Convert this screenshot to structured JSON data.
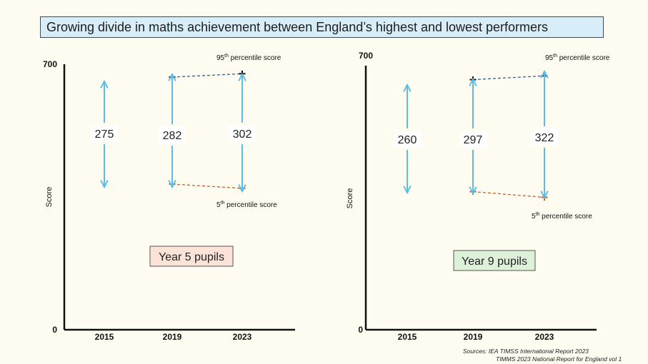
{
  "title": "Growing divide in maths achievement between England’s highest and lowest performers",
  "sources": [
    "Sources:   IEA TIMSS International Report 2023",
    "TIMMS 2023 National Report for England vol 1"
  ],
  "colors": {
    "background": "#fefcf0",
    "title_box": "#d7eef9",
    "arrow": "#5bbde6",
    "p95": "#2f5f8f",
    "p5": "#c0602a",
    "year5_box": "#fbe3d8",
    "year9_box": "#dcf1d8"
  },
  "chart_data": [
    {
      "type": "line",
      "panel_label": "Year 5 pupils",
      "categories": [
        "2015",
        "2019",
        "2023"
      ],
      "ylabel": "Score",
      "ylim": [
        0,
        700
      ],
      "y_ticks": [
        "0",
        "700"
      ],
      "series": [
        {
          "name": "95th percentile score",
          "x": [
            "2019",
            "2023"
          ],
          "values": [
            666,
            675
          ]
        },
        {
          "name": "5th percentile score",
          "x": [
            "2019",
            "2023"
          ],
          "values": [
            384,
            373
          ]
        }
      ],
      "gaps": [
        {
          "x": "2015",
          "value": 275
        },
        {
          "x": "2019",
          "value": 282
        },
        {
          "x": "2023",
          "value": 302
        }
      ]
    },
    {
      "type": "line",
      "panel_label": "Year 9 pupils",
      "categories": [
        "2015",
        "2019",
        "2023"
      ],
      "ylabel": "Score",
      "ylim": [
        0,
        700
      ],
      "y_ticks": [
        "0",
        "700"
      ],
      "series": [
        {
          "name": "95th percentile score",
          "x": [
            "2019",
            "2023"
          ],
          "values": [
            663,
            673
          ]
        },
        {
          "name": "5th percentile score",
          "x": [
            "2019",
            "2023"
          ],
          "values": [
            366,
            351
          ]
        }
      ],
      "gaps": [
        {
          "x": "2015",
          "value": 260
        },
        {
          "x": "2019",
          "value": 297
        },
        {
          "x": "2023",
          "value": 322
        }
      ]
    }
  ]
}
